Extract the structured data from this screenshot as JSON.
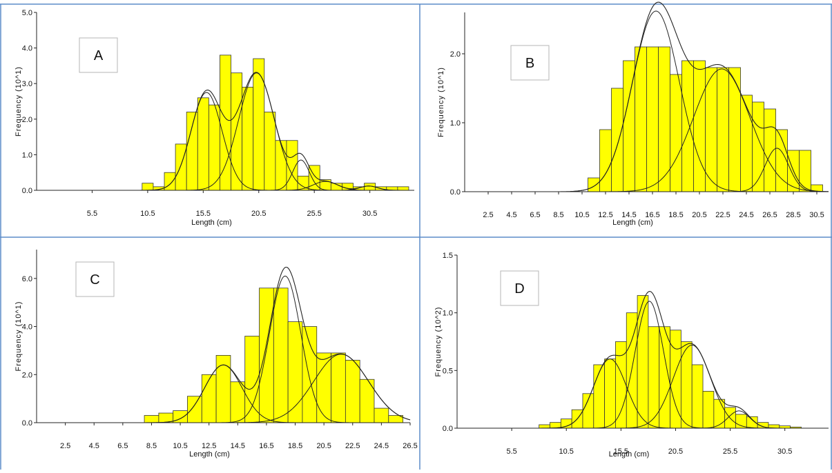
{
  "figure": {
    "chart_data": [
      {
        "id": "A",
        "type": "bar",
        "panel_label": "A",
        "xlabel": "Length (cm)",
        "ylabel": "Frequency (10^1)",
        "ylim": [
          0,
          5.0
        ],
        "xlim": [
          0.5,
          34.5
        ],
        "bin_width": 1,
        "xtick_labels": [
          "5.5",
          "10.5",
          "15.5",
          "20.5",
          "25.5",
          "30.5"
        ],
        "xtick_values": [
          5.5,
          10.5,
          15.5,
          20.5,
          25.5,
          30.5
        ],
        "ytick_labels": [
          "0.0",
          "1.0",
          "2.0",
          "3.0",
          "4.0",
          "5.0"
        ],
        "ytick_values": [
          0,
          1,
          2,
          3,
          4,
          5
        ],
        "bins": [
          10.5,
          11.5,
          12.5,
          13.5,
          14.5,
          15.5,
          16.5,
          17.5,
          18.5,
          19.5,
          20.5,
          21.5,
          22.5,
          23.5,
          24.5,
          25.5,
          26.5,
          27.5,
          28.5,
          29.5,
          30.5,
          31.5,
          32.5,
          33.5
        ],
        "values": [
          0.2,
          0.1,
          0.5,
          1.3,
          2.2,
          2.6,
          2.4,
          3.8,
          3.3,
          2.9,
          3.7,
          2.2,
          1.4,
          1.4,
          0.4,
          0.7,
          0.3,
          0.2,
          0.2,
          0.1,
          0.2,
          0.1,
          0.1,
          0.1
        ],
        "components": [
          {
            "mean": 15.8,
            "sd": 1.4,
            "amp": 2.75
          },
          {
            "mean": 20.3,
            "sd": 1.6,
            "amp": 3.3
          },
          {
            "mean": 24.3,
            "sd": 0.75,
            "amp": 0.85
          },
          {
            "mean": 26.5,
            "sd": 1.1,
            "amp": 0.25
          },
          {
            "mean": 30.4,
            "sd": 0.8,
            "amp": 0.12
          }
        ]
      },
      {
        "id": "B",
        "type": "bar",
        "panel_label": "B",
        "xlabel": "Length (cm)",
        "ylabel": "Frequency (10^1)",
        "ylim": [
          0,
          2.6
        ],
        "xlim": [
          0.5,
          31.5
        ],
        "bin_width": 1,
        "xtick_labels": [
          "2.5",
          "4.5",
          "6.5",
          "8.5",
          "10.5",
          "12.5",
          "14.5",
          "16.5",
          "18.5",
          "20.5",
          "22.5",
          "24.5",
          "26.5",
          "28.5",
          "30.5"
        ],
        "xtick_values": [
          2.5,
          4.5,
          6.5,
          8.5,
          10.5,
          12.5,
          14.5,
          16.5,
          18.5,
          20.5,
          22.5,
          24.5,
          26.5,
          28.5,
          30.5
        ],
        "ytick_labels": [
          "0.0",
          "1.0",
          "2.0"
        ],
        "ytick_values": [
          0,
          1,
          2
        ],
        "bins": [
          11.5,
          12.5,
          13.5,
          14.5,
          15.5,
          16.5,
          17.5,
          18.5,
          19.5,
          20.5,
          21.5,
          22.5,
          23.5,
          24.5,
          25.5,
          26.5,
          27.5,
          28.5,
          29.5,
          30.5
        ],
        "values": [
          0.2,
          0.9,
          1.5,
          1.9,
          2.1,
          2.1,
          2.1,
          1.7,
          1.9,
          1.9,
          1.8,
          1.8,
          1.8,
          1.4,
          1.3,
          1.2,
          0.9,
          0.6,
          0.6,
          0.1
        ],
        "components": [
          {
            "mean": 16.8,
            "sd": 2.0,
            "amp": 2.62
          },
          {
            "mean": 22.4,
            "sd": 2.4,
            "amp": 1.78
          },
          {
            "mean": 27.1,
            "sd": 1.0,
            "amp": 0.63
          }
        ]
      },
      {
        "id": "C",
        "type": "bar",
        "panel_label": "C",
        "xlabel": "Length (cm)",
        "ylabel": "Frequency (10^1)",
        "ylim": [
          0,
          7.2
        ],
        "xlim": [
          0.5,
          26.5
        ],
        "bin_width": 1,
        "xtick_labels": [
          "2.5",
          "4.5",
          "6.5",
          "8.5",
          "10.5",
          "12.5",
          "14.5",
          "16.5",
          "18.5",
          "20.5",
          "22.5",
          "24.5",
          "26.5"
        ],
        "xtick_values": [
          2.5,
          4.5,
          6.5,
          8.5,
          10.5,
          12.5,
          14.5,
          16.5,
          18.5,
          20.5,
          22.5,
          24.5,
          26.5
        ],
        "ytick_labels": [
          "0.0",
          "2.0",
          "4.0",
          "6.0"
        ],
        "ytick_values": [
          0,
          2,
          4,
          6
        ],
        "bins": [
          8.5,
          9.5,
          10.5,
          11.5,
          12.5,
          13.5,
          14.5,
          15.5,
          16.5,
          17.5,
          18.5,
          19.5,
          20.5,
          21.5,
          22.5,
          23.5,
          24.5,
          25.5
        ],
        "values": [
          0.3,
          0.4,
          0.5,
          1.1,
          2.0,
          2.8,
          1.7,
          3.6,
          5.6,
          5.6,
          4.2,
          4.0,
          2.9,
          2.9,
          2.6,
          1.8,
          0.6,
          0.3
        ],
        "components": [
          {
            "mean": 13.5,
            "sd": 1.3,
            "amp": 2.4
          },
          {
            "mean": 17.8,
            "sd": 1.1,
            "amp": 6.1
          },
          {
            "mean": 21.7,
            "sd": 1.9,
            "amp": 2.85
          }
        ]
      },
      {
        "id": "D",
        "type": "bar",
        "panel_label": "D",
        "xlabel": "Length (cm)",
        "ylabel": "Frequency (10^2)",
        "ylim": [
          0,
          1.5
        ],
        "xlim": [
          0.5,
          34.5
        ],
        "bin_width": 1,
        "xtick_labels": [
          "5.5",
          "10.5",
          "15.5",
          "20.5",
          "25.5",
          "30.5"
        ],
        "xtick_values": [
          5.5,
          10.5,
          15.5,
          20.5,
          25.5,
          30.5
        ],
        "ytick_labels": [
          "0.0",
          "0.5",
          "1.0",
          "1.5"
        ],
        "ytick_values": [
          0,
          0.5,
          1.0,
          1.5
        ],
        "bins": [
          8.5,
          9.5,
          10.5,
          11.5,
          12.5,
          13.5,
          14.5,
          15.5,
          16.5,
          17.5,
          18.5,
          19.5,
          20.5,
          21.5,
          22.5,
          23.5,
          24.5,
          25.5,
          26.5,
          27.5,
          28.5,
          29.5,
          30.5,
          31.5
        ],
        "values": [
          0.03,
          0.05,
          0.08,
          0.16,
          0.3,
          0.55,
          0.6,
          0.75,
          1.0,
          1.15,
          0.88,
          0.88,
          0.85,
          0.75,
          0.55,
          0.32,
          0.25,
          0.18,
          0.12,
          0.1,
          0.05,
          0.03,
          0.02,
          0.01
        ],
        "components": [
          {
            "mean": 14.5,
            "sd": 1.5,
            "amp": 0.6
          },
          {
            "mean": 18.1,
            "sd": 1.3,
            "amp": 1.1
          },
          {
            "mean": 22.0,
            "sd": 1.7,
            "amp": 0.72
          },
          {
            "mean": 26.3,
            "sd": 1.0,
            "amp": 0.15
          }
        ]
      }
    ]
  },
  "colors": {
    "bar_fill": "#ffff00",
    "bar_stroke": "#333333",
    "curve": "#222222",
    "panel_border": "#5b8bc9",
    "badge_border": "#b5b5b5"
  }
}
